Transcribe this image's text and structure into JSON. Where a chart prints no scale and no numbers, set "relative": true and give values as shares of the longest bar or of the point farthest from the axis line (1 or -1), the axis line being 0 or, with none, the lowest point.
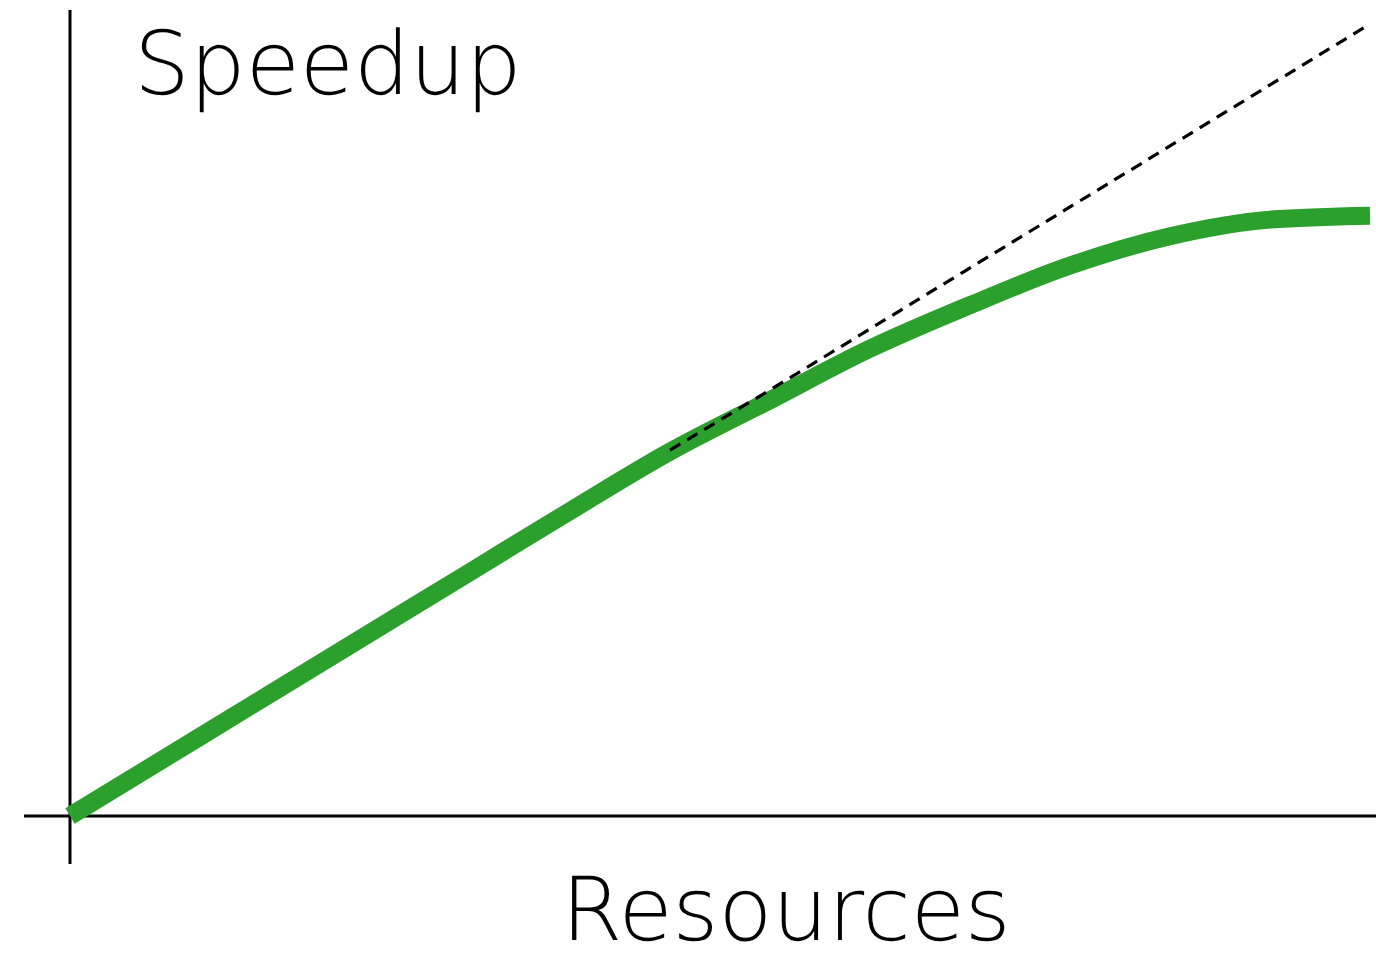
{
  "chart_data": {
    "type": "line",
    "relative": true,
    "title": "Speedup",
    "xlabel": "Resources",
    "categories": [
      null,
      null,
      null,
      null,
      null,
      null,
      null,
      null,
      null,
      null,
      null,
      null,
      null,
      null
    ],
    "marker": "none",
    "series": [
      {
        "color": "#000000",
        "line_style": "dashed",
        "values": [
          null,
          null,
          null,
          null,
          null,
          null,
          0.462,
          0.538,
          0.615,
          0.692,
          0.769,
          0.846,
          0.923,
          1
        ]
      },
      {
        "color": "#2ca02c",
        "line_style": "solid",
        "values": [
          0,
          0.077,
          0.154,
          0.231,
          0.308,
          0.385,
          0.46,
          0.525,
          0.59,
          0.645,
          0.695,
          0.732,
          0.753,
          0.758
        ]
      }
    ]
  }
}
